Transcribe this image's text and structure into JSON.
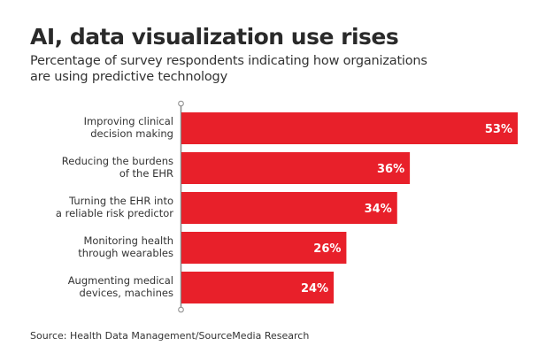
{
  "chart_data": {
    "type": "bar",
    "orientation": "horizontal",
    "title": "AI, data visualization use rises",
    "subtitle": "Percentage of survey respondents indicating how organizations are using predictive technology",
    "categories": [
      [
        "Improving clinical",
        "decision making"
      ],
      [
        "Reducing the burdens",
        "of the EHR"
      ],
      [
        "Turning the EHR into",
        "a reliable risk predictor"
      ],
      [
        "Monitoring health",
        "through wearables"
      ],
      [
        "Augmenting medical",
        "devices, machines"
      ]
    ],
    "values": [
      53,
      36,
      34,
      26,
      24
    ],
    "value_labels": [
      "53%",
      "36%",
      "34%",
      "26%",
      "24%"
    ],
    "xlim": [
      0,
      55
    ],
    "xlabel": "",
    "ylabel": "",
    "grid": false,
    "legend": "none",
    "bar_color": "#e8202a",
    "source": "Source: Health Data Management/SourceMedia Research"
  }
}
